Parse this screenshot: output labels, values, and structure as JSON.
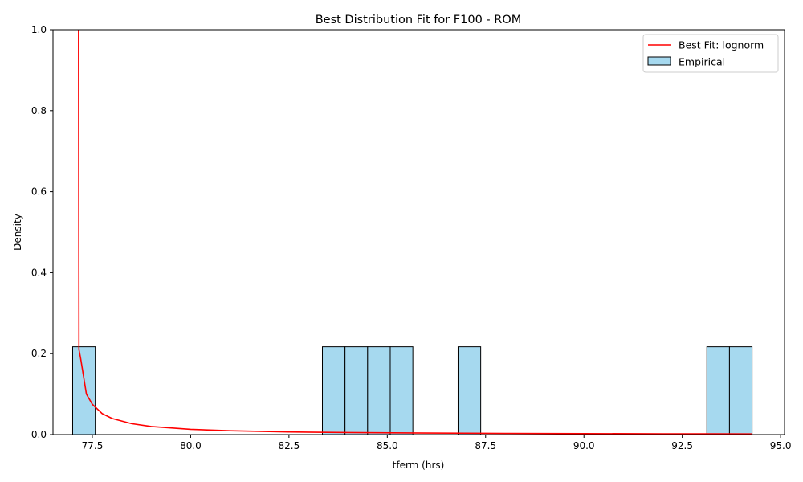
{
  "chart_data": {
    "type": "bar",
    "title": "Best Distribution Fit for F100 - ROM",
    "xlabel": "tferm (hrs)",
    "ylabel": "Density",
    "xlim": [
      76.5,
      95.1
    ],
    "ylim": [
      0,
      1.0
    ],
    "x_ticks": [
      "77.5",
      "80.0",
      "82.5",
      "85.0",
      "87.5",
      "90.0",
      "92.5",
      "95.0"
    ],
    "y_ticks": [
      "0.0",
      "0.2",
      "0.4",
      "0.6",
      "0.8",
      "1.0"
    ],
    "grid": false,
    "legend_position": "top-right",
    "series": [
      {
        "name": "Empirical",
        "kind": "histogram",
        "color": "#a6d9ef",
        "edge_color": "#000000",
        "bins": [
          {
            "x0": 77.0,
            "x1": 77.575,
            "density": 0.217
          },
          {
            "x0": 83.35,
            "x1": 83.925,
            "density": 0.217
          },
          {
            "x0": 83.925,
            "x1": 84.5,
            "density": 0.217
          },
          {
            "x0": 84.5,
            "x1": 85.075,
            "density": 0.217
          },
          {
            "x0": 85.075,
            "x1": 85.65,
            "density": 0.217
          },
          {
            "x0": 86.8,
            "x1": 87.375,
            "density": 0.217
          },
          {
            "x0": 93.125,
            "x1": 93.7,
            "density": 0.217
          },
          {
            "x0": 93.7,
            "x1": 94.275,
            "density": 0.217
          }
        ]
      },
      {
        "name": "Best Fit: lognorm",
        "kind": "line",
        "color": "#ff0000",
        "x": [
          77.15,
          77.16,
          77.2,
          77.35,
          77.5,
          77.75,
          78.0,
          78.5,
          79.0,
          80.0,
          81.0,
          82.5,
          84.0,
          86.0,
          88.0,
          90.0,
          92.0,
          94.275
        ],
        "y": [
          1.0,
          0.21,
          0.19,
          0.1,
          0.075,
          0.052,
          0.04,
          0.027,
          0.02,
          0.013,
          0.0095,
          0.0065,
          0.005,
          0.0038,
          0.003,
          0.0024,
          0.002,
          0.0016
        ]
      }
    ]
  }
}
